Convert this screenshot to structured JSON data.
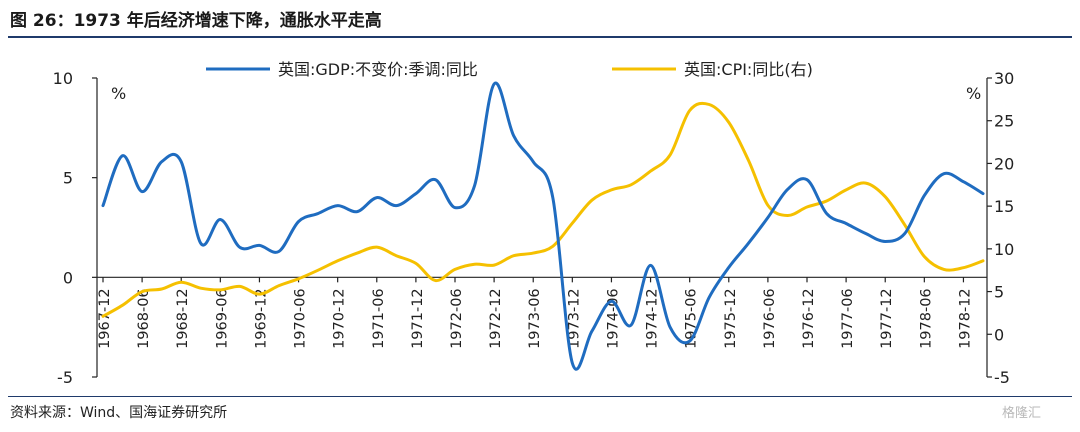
{
  "figure": {
    "title": "图 26：1973 年后经济增速下降，通胀水平走高",
    "source": "资料来源：Wind、国海证券研究所",
    "watermark": "格隆汇"
  },
  "chart_data": {
    "type": "line",
    "title": "",
    "ylabel": "%",
    "y2label": "%",
    "ylim": [
      -5,
      10
    ],
    "y2lim": [
      -5,
      30
    ],
    "yticks": [
      -5,
      0,
      5,
      10
    ],
    "y2ticks": [
      -5,
      0,
      5,
      10,
      15,
      20,
      25,
      30
    ],
    "x_ticks": [
      "1967-12",
      "1968-06",
      "1968-12",
      "1969-06",
      "1969-12",
      "1970-06",
      "1970-12",
      "1971-06",
      "1971-12",
      "1972-06",
      "1972-12",
      "1973-06",
      "1973-12",
      "1974-06",
      "1974-12",
      "1975-06",
      "1975-12",
      "1976-06",
      "1976-12",
      "1977-06",
      "1977-12",
      "1978-06",
      "1978-12"
    ],
    "legend_position": "top",
    "colors": {
      "gdp": "#1f6cc0",
      "cpi": "#f5c000",
      "axis": "#222222"
    },
    "series": [
      {
        "name": "英国:GDP:不变价:季调:同比",
        "axis": "left",
        "color": "#1f6cc0",
        "points": [
          [
            0,
            3.6
          ],
          [
            1,
            6.1
          ],
          [
            2,
            4.3
          ],
          [
            3,
            5.8
          ],
          [
            4,
            5.8
          ],
          [
            5,
            1.7
          ],
          [
            6,
            2.9
          ],
          [
            7,
            1.5
          ],
          [
            8,
            1.6
          ],
          [
            9,
            1.3
          ],
          [
            10,
            2.8
          ],
          [
            11,
            3.2
          ],
          [
            12,
            3.6
          ],
          [
            13,
            3.3
          ],
          [
            14,
            4.0
          ],
          [
            15,
            3.6
          ],
          [
            16,
            4.2
          ],
          [
            17,
            4.9
          ],
          [
            18,
            3.5
          ],
          [
            19,
            4.6
          ],
          [
            20,
            9.7
          ],
          [
            21,
            7.1
          ],
          [
            22,
            5.8
          ],
          [
            23,
            4.0
          ],
          [
            24,
            -4.3
          ],
          [
            25,
            -2.7
          ],
          [
            26,
            -1.2
          ],
          [
            27,
            -2.4
          ],
          [
            28,
            0.6
          ],
          [
            29,
            -2.5
          ],
          [
            30,
            -3.2
          ],
          [
            31,
            -1.0
          ],
          [
            32,
            0.5
          ],
          [
            33,
            1.7
          ],
          [
            34,
            3.0
          ],
          [
            35,
            4.4
          ],
          [
            36,
            4.9
          ],
          [
            37,
            3.2
          ],
          [
            38,
            2.7
          ],
          [
            39,
            2.2
          ],
          [
            40,
            1.8
          ],
          [
            41,
            2.2
          ],
          [
            42,
            4.1
          ],
          [
            43,
            5.2
          ],
          [
            44,
            4.8
          ],
          [
            45,
            4.2
          ]
        ]
      },
      {
        "name": "英国:CPI:同比(右)",
        "axis": "right",
        "color": "#f5c000",
        "points": [
          [
            0,
            2.1
          ],
          [
            1,
            3.4
          ],
          [
            2,
            5.0
          ],
          [
            3,
            5.3
          ],
          [
            4,
            6.1
          ],
          [
            5,
            5.4
          ],
          [
            6,
            5.2
          ],
          [
            7,
            5.6
          ],
          [
            8,
            4.7
          ],
          [
            9,
            5.7
          ],
          [
            10,
            6.5
          ],
          [
            11,
            7.5
          ],
          [
            12,
            8.6
          ],
          [
            13,
            9.5
          ],
          [
            14,
            10.2
          ],
          [
            15,
            9.2
          ],
          [
            16,
            8.3
          ],
          [
            17,
            6.3
          ],
          [
            18,
            7.6
          ],
          [
            19,
            8.2
          ],
          [
            20,
            8.1
          ],
          [
            21,
            9.2
          ],
          [
            22,
            9.5
          ],
          [
            23,
            10.3
          ],
          [
            24,
            13.0
          ],
          [
            25,
            15.7
          ],
          [
            26,
            16.9
          ],
          [
            27,
            17.5
          ],
          [
            28,
            19.1
          ],
          [
            29,
            21.0
          ],
          [
            30,
            26.2
          ],
          [
            31,
            26.9
          ],
          [
            32,
            24.8
          ],
          [
            33,
            20.4
          ],
          [
            34,
            15.1
          ],
          [
            35,
            13.9
          ],
          [
            36,
            14.9
          ],
          [
            37,
            15.6
          ],
          [
            38,
            16.9
          ],
          [
            39,
            17.7
          ],
          [
            40,
            16.1
          ],
          [
            41,
            12.8
          ],
          [
            42,
            9.1
          ],
          [
            43,
            7.6
          ],
          [
            44,
            7.8
          ],
          [
            45,
            8.6
          ]
        ]
      }
    ]
  }
}
